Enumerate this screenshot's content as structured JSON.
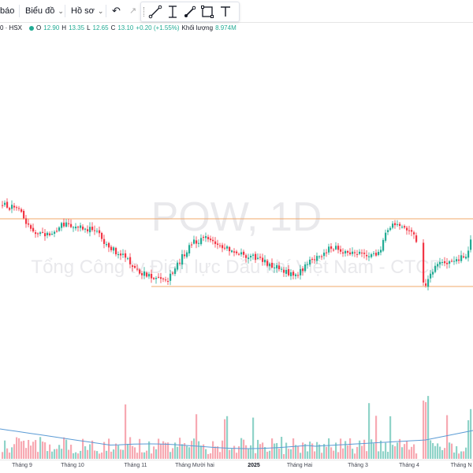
{
  "toolbar": {
    "alerts_label": "báo",
    "chart_label": "Biểu đồ",
    "profile_label": "Hồ sơ",
    "undo_icon": "undo-icon",
    "tools": [
      "trend-line-icon",
      "cursor-text-icon",
      "brush-icon",
      "rectangle-icon",
      "text-tool-icon"
    ]
  },
  "legend": {
    "symbol": "0 · HSX",
    "open_label": "O",
    "open": "12.90",
    "high_label": "H",
    "high": "13.35",
    "low_label": "L",
    "low": "12.65",
    "close_label": "C",
    "close": "13.10",
    "change": "+0.20 (+1.55%)",
    "volume_label": "Khối lượng",
    "volume": "8.974M"
  },
  "watermark": {
    "ticker": "POW, 1D",
    "company": "Tổng Công ty Điện lực Dầu khí Việt Nam - CTCP"
  },
  "colors": {
    "up": "#22ab94",
    "down": "#f23645",
    "up_volume": "#8fd3c8",
    "down_volume": "#f7a9b2",
    "horizontal_line": "#f0a86a",
    "volume_ma": "#5b9bd5"
  },
  "x_axis": {
    "labels": [
      "Tháng 9",
      "Tháng 10",
      "Tháng 11",
      "Tháng Mười hai",
      "2025",
      "Tháng Hai",
      "Tháng 3",
      "Tháng 4",
      "Tháng N"
    ]
  },
  "chart_data": {
    "type": "candlestick",
    "interval": "1D",
    "ohlc_seed": 13,
    "candle_count": 200,
    "horizontal_levels": [
      "upper-resistance",
      "lower-support"
    ],
    "volume_ma": true
  }
}
